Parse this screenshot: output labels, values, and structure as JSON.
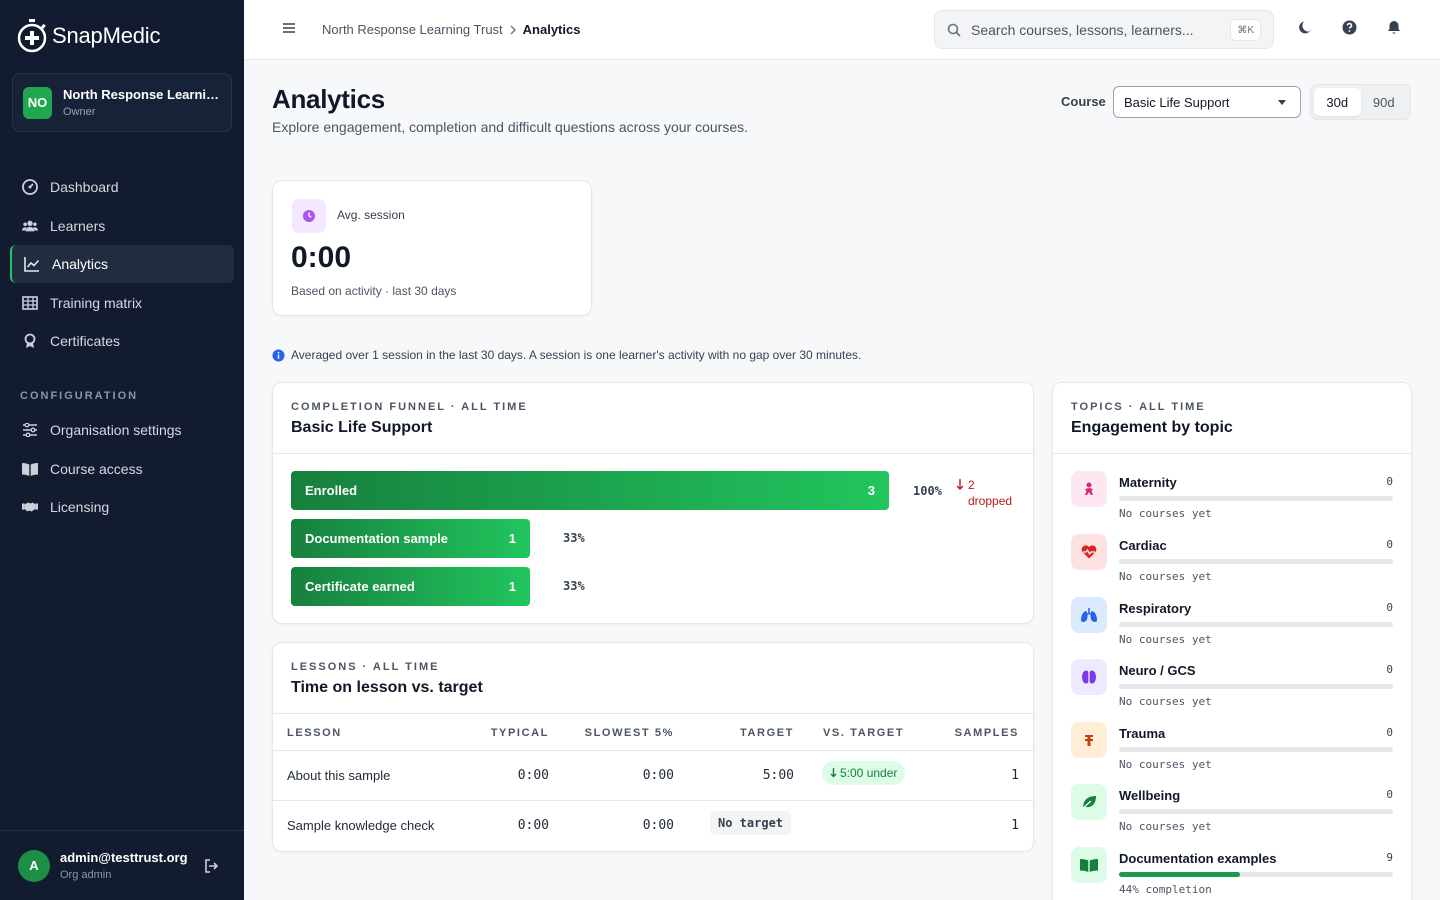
{
  "app": {
    "name": "SnapMedic"
  },
  "org": {
    "initials": "NO",
    "name": "North Response Learning Trust",
    "role": "Owner"
  },
  "nav": [
    {
      "label": "Dashboard",
      "icon": "dashboard-icon"
    },
    {
      "label": "Learners",
      "icon": "users-icon"
    },
    {
      "label": "Analytics",
      "icon": "chart-line-icon",
      "active": true
    },
    {
      "label": "Training matrix",
      "icon": "grid-icon"
    },
    {
      "label": "Certificates",
      "icon": "award-icon"
    }
  ],
  "config_label": "CONFIGURATION",
  "config_nav": [
    {
      "label": "Organisation settings",
      "icon": "sliders-icon"
    },
    {
      "label": "Course access",
      "icon": "book-icon"
    },
    {
      "label": "Licensing",
      "icon": "handshake-icon"
    }
  ],
  "user": {
    "initial": "A",
    "email": "admin@testtrust.org",
    "role": "Org admin"
  },
  "breadcrumb": {
    "parent": "North Response Learning Trust",
    "current": "Analytics"
  },
  "search": {
    "placeholder": "Search courses, lessons, learners...",
    "shortcut": "⌘K"
  },
  "page": {
    "title": "Analytics",
    "subtitle": "Explore engagement, completion and difficult questions across your courses."
  },
  "filters": {
    "course_label": "Course",
    "course_value": "Basic Life Support",
    "ranges": [
      "30d",
      "90d"
    ],
    "selected_range": "30d"
  },
  "stat": {
    "label": "Avg. session",
    "value": "0:00",
    "note": "Based on activity · last 30 days"
  },
  "info_note": "Averaged over 1 session in the last 30 days. A session is one learner's activity with no gap over 30 minutes.",
  "funnel": {
    "kicker": "COMPLETION FUNNEL · ALL TIME",
    "title": "Basic Life Support",
    "stages": [
      {
        "label": "Enrolled",
        "count": "3",
        "pct": "100%",
        "fraction": 1.0
      },
      {
        "label": "Documentation sample",
        "count": "1",
        "pct": "33%",
        "fraction": 0.333
      },
      {
        "label": "Certificate earned",
        "count": "1",
        "pct": "33%",
        "fraction": 0.333
      }
    ],
    "dropped": {
      "count": "2",
      "label": "dropped"
    }
  },
  "lessons": {
    "kicker": "LESSONS · ALL TIME",
    "title": "Time on lesson vs. target",
    "columns": [
      "LESSON",
      "TYPICAL",
      "SLOWEST 5%",
      "TARGET",
      "VS. TARGET",
      "SAMPLES"
    ],
    "rows": [
      {
        "lesson": "About this sample",
        "typical": "0:00",
        "slowest": "0:00",
        "target": "5:00",
        "vs": "5:00 under",
        "samples": "1"
      },
      {
        "lesson": "Sample knowledge check",
        "typical": "0:00",
        "slowest": "0:00",
        "target": "No target",
        "vs": "",
        "samples": "1"
      }
    ]
  },
  "topics": {
    "kicker": "TOPICS · ALL TIME",
    "title": "Engagement by topic",
    "items": [
      {
        "name": "Maternity",
        "count": "0",
        "status": "No courses yet",
        "progress": 0,
        "icon": "baby-icon",
        "color": "#db2777",
        "bg": "#fce7f3"
      },
      {
        "name": "Cardiac",
        "count": "0",
        "status": "No courses yet",
        "progress": 0,
        "icon": "heart-pulse-icon",
        "color": "#dc2626",
        "bg": "#fee2e2"
      },
      {
        "name": "Respiratory",
        "count": "0",
        "status": "No courses yet",
        "progress": 0,
        "icon": "lungs-icon",
        "color": "#2563eb",
        "bg": "#dbeafe"
      },
      {
        "name": "Neuro / GCS",
        "count": "0",
        "status": "No courses yet",
        "progress": 0,
        "icon": "brain-icon",
        "color": "#7c3aed",
        "bg": "#ede9fe"
      },
      {
        "name": "Trauma",
        "count": "0",
        "status": "No courses yet",
        "progress": 0,
        "icon": "bandage-icon",
        "color": "#c2410c",
        "bg": "#ffedd5"
      },
      {
        "name": "Wellbeing",
        "count": "0",
        "status": "No courses yet",
        "progress": 0,
        "icon": "leaf-icon",
        "color": "#15803d",
        "bg": "#dcfce7"
      },
      {
        "name": "Documentation examples",
        "count": "9",
        "status": "44% completion",
        "progress": 0.44,
        "icon": "open-book-icon",
        "color": "#15803d",
        "bg": "#dcfce7"
      }
    ]
  }
}
